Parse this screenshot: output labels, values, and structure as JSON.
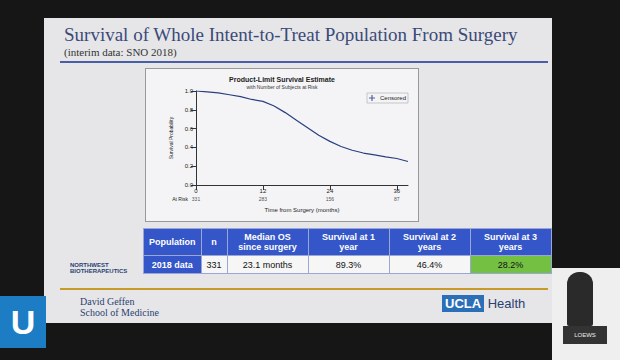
{
  "chart_data": {
    "type": "line",
    "title": "Product-Limit Survival Estimate",
    "subtitle": "with Number of Subjects at Risk",
    "x_label": "Time from Surgery (months)",
    "y_label": "Survival Probability",
    "x": [
      0,
      2,
      4,
      6,
      8,
      10,
      12,
      14,
      16,
      18,
      20,
      22,
      24,
      26,
      28,
      30,
      32,
      34,
      36,
      38
    ],
    "values": [
      1.0,
      0.99,
      0.98,
      0.96,
      0.94,
      0.91,
      0.89,
      0.84,
      0.77,
      0.69,
      0.61,
      0.53,
      0.464,
      0.41,
      0.37,
      0.34,
      0.32,
      0.3,
      0.282,
      0.25
    ],
    "color": "#2a3f7f",
    "xlim": [
      0,
      38
    ],
    "xticks": [
      0,
      12,
      24,
      36
    ],
    "ylim": [
      0,
      1
    ],
    "yticks": [
      {
        "value": 0,
        "label": "0.0"
      },
      0.2,
      0.4,
      0.6,
      0.8,
      {
        "value": 1,
        "label": "1.0"
      }
    ],
    "grid": false,
    "legend": "upper right",
    "legend_label": "Censored",
    "at_risk": {
      "label": "At Risk",
      "x": [
        0,
        12,
        24,
        36
      ],
      "values": [
        331,
        283,
        156,
        87
      ]
    }
  },
  "slide": {
    "title": "Survival of Whole Intent-to-Treat Population From Surgery",
    "subtitle": "(interim data: SNO 2018)",
    "table": {
      "header": [
        "Population",
        "n",
        "Median OS since surgery",
        "Survival at 1 year",
        "Survival at 2 years",
        "Survival at 3 years"
      ],
      "rows": [
        [
          "2018 data",
          "331",
          "23.1 months",
          "89.3%",
          "46.4%",
          "28.2%"
        ]
      ]
    },
    "logos": {
      "left": "NORTHWEST BIOTHERAPEUTICS",
      "school_1": "David Geffen",
      "school_2": "School of Medicine",
      "right_1": "UCLA",
      "right_2": "Health",
      "corner": "U",
      "podium": "LOEWS"
    }
  }
}
